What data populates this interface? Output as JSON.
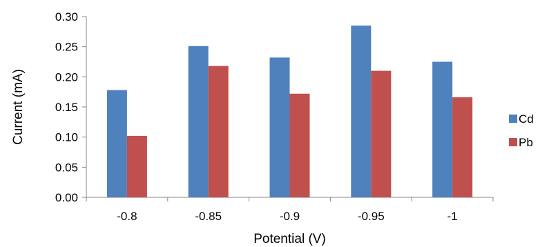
{
  "chart_data": {
    "type": "bar",
    "title": "",
    "xlabel": "Potential (V)",
    "ylabel": "Current (mA)",
    "categories": [
      "-0.8",
      "-0.85",
      "-0.9",
      "-0.95",
      "-1"
    ],
    "series": [
      {
        "name": "Cd",
        "color": "#4f81bd",
        "values": [
          0.178,
          0.251,
          0.232,
          0.285,
          0.225
        ]
      },
      {
        "name": "Pb",
        "color": "#c0504d",
        "values": [
          0.102,
          0.218,
          0.172,
          0.21,
          0.166
        ]
      }
    ],
    "ylim": [
      0,
      0.3
    ],
    "yticks": [
      "0.00",
      "0.05",
      "0.10",
      "0.15",
      "0.20",
      "0.25",
      "0.30"
    ],
    "grid": false,
    "legend_position": "right"
  }
}
